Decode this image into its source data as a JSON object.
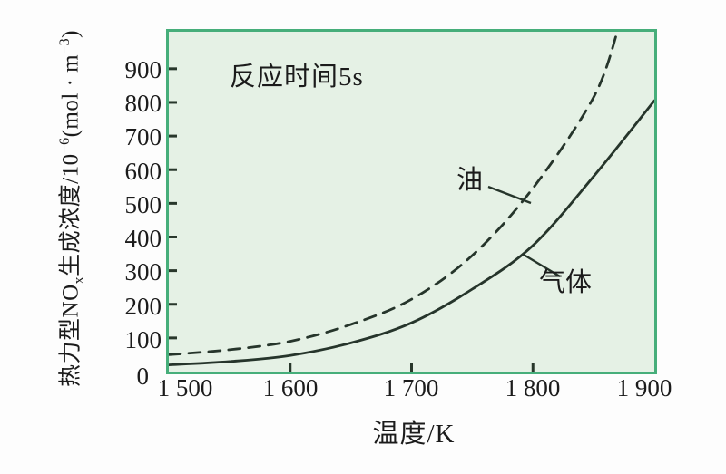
{
  "figure": {
    "annotation": "反应时间5s",
    "x_axis": {
      "title": "温度/K",
      "tick_labels": [
        "1 500",
        "1 600",
        "1 700",
        "1 800",
        "1 900"
      ]
    },
    "y_axis": {
      "title_parts": {
        "p1": "热力型NO",
        "sub1": "x",
        "p2": "生成浓度/10",
        "sup1": "−6",
        "p3": "(mol · m",
        "sup2": "−3",
        "p4": ")"
      },
      "tick_labels": [
        "900",
        "800",
        "700",
        "600",
        "500",
        "400",
        "300",
        "200",
        "100"
      ],
      "zero_label": "0"
    },
    "colors": {
      "plot_bg": "#e5f1e5",
      "border": "#46ae7a",
      "curve": "#26352b",
      "tick": "#28372b",
      "text": "#1b1b1b"
    }
  },
  "chart_data": {
    "type": "line",
    "title": "",
    "annotation": "反应时间5s",
    "xlabel": "温度/K",
    "ylabel": "热力型NOx生成浓度/10−6(mol·m−3)",
    "xlim": [
      1500,
      1900
    ],
    "ylim": [
      0,
      1010
    ],
    "x_ticks": [
      1500,
      1600,
      1700,
      1800,
      1900
    ],
    "y_ticks": [
      0,
      100,
      200,
      300,
      400,
      500,
      600,
      700,
      800,
      900
    ],
    "grid": false,
    "legend_position": "inline-annotations",
    "series": [
      {
        "name": "油",
        "style": "dashed",
        "x": [
          1500,
          1550,
          1600,
          1650,
          1700,
          1750,
          1800,
          1850,
          1870
        ],
        "values": [
          50,
          65,
          90,
          140,
          215,
          345,
          545,
          815,
          1015
        ]
      },
      {
        "name": "气体",
        "style": "solid",
        "x": [
          1500,
          1550,
          1600,
          1650,
          1700,
          1750,
          1800,
          1850,
          1900
        ],
        "values": [
          20,
          30,
          48,
          85,
          145,
          245,
          375,
          580,
          805
        ]
      }
    ]
  }
}
